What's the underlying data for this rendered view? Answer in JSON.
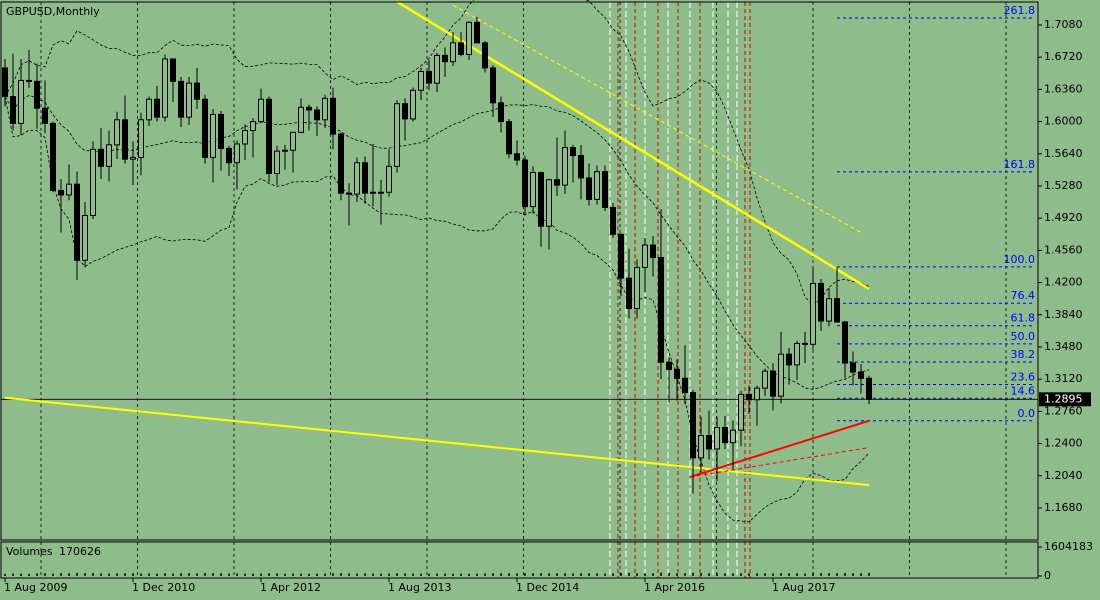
{
  "chart_data": {
    "type": "candlestick",
    "title": "GBPUSD,Monthly",
    "up_color": "#8fbc8b",
    "down_color": "#000000",
    "open": [
      1.66,
      1.628,
      1.598,
      1.646,
      1.645,
      1.615,
      1.598,
      1.523,
      1.518,
      1.53,
      1.445,
      1.495,
      1.569,
      1.55,
      1.574,
      1.602,
      1.558,
      1.56,
      1.602,
      1.625,
      1.605,
      1.67,
      1.645,
      1.605,
      1.643,
      1.625,
      1.56,
      1.608,
      1.57,
      1.554,
      1.575,
      1.59,
      1.6,
      1.625,
      1.542,
      1.567,
      1.568,
      1.588,
      1.616,
      1.613,
      1.602,
      1.626,
      1.586,
      1.52,
      1.519,
      1.554,
      1.52,
      1.521,
      1.521,
      1.55,
      1.62,
      1.603,
      1.635,
      1.656,
      1.643,
      1.674,
      1.667,
      1.688,
      1.675,
      1.711,
      1.688,
      1.66,
      1.621,
      1.6,
      1.564,
      1.557,
      1.505,
      1.543,
      1.483,
      1.535,
      1.529,
      1.571,
      1.562,
      1.537,
      1.513,
      1.544,
      1.504,
      1.474,
      1.425,
      1.391,
      1.437,
      1.462,
      1.448,
      1.331,
      1.323,
      1.313,
      1.297,
      1.224,
      1.249,
      1.234,
      1.258,
      1.241,
      1.255,
      1.295,
      1.289,
      1.302,
      1.321,
      1.293,
      1.34,
      1.328,
      1.352,
      1.351,
      1.419,
      1.377,
      1.402,
      1.376,
      1.33,
      1.32,
      1.313
    ],
    "high": [
      1.67,
      1.676,
      1.67,
      1.68,
      1.665,
      1.646,
      1.6,
      1.536,
      1.552,
      1.544,
      1.51,
      1.578,
      1.593,
      1.59,
      1.611,
      1.629,
      1.578,
      1.61,
      1.628,
      1.64,
      1.675,
      1.67,
      1.65,
      1.65,
      1.66,
      1.63,
      1.614,
      1.612,
      1.573,
      1.579,
      1.597,
      1.604,
      1.637,
      1.628,
      1.573,
      1.574,
      1.588,
      1.626,
      1.619,
      1.617,
      1.63,
      1.638,
      1.588,
      1.531,
      1.56,
      1.561,
      1.575,
      1.535,
      1.569,
      1.624,
      1.626,
      1.638,
      1.66,
      1.669,
      1.677,
      1.683,
      1.7,
      1.7,
      1.712,
      1.717,
      1.69,
      1.663,
      1.628,
      1.603,
      1.579,
      1.562,
      1.55,
      1.544,
      1.536,
      1.582,
      1.59,
      1.574,
      1.574,
      1.553,
      1.551,
      1.551,
      1.509,
      1.475,
      1.458,
      1.446,
      1.47,
      1.472,
      1.502,
      1.337,
      1.334,
      1.35,
      1.3,
      1.27,
      1.277,
      1.27,
      1.271,
      1.266,
      1.299,
      1.305,
      1.305,
      1.324,
      1.33,
      1.365,
      1.347,
      1.355,
      1.365,
      1.436,
      1.424,
      1.414,
      1.437,
      1.377,
      1.343,
      1.329,
      1.316
    ],
    "low": [
      1.617,
      1.59,
      1.585,
      1.638,
      1.592,
      1.587,
      1.521,
      1.476,
      1.512,
      1.423,
      1.437,
      1.491,
      1.536,
      1.533,
      1.558,
      1.553,
      1.529,
      1.54,
      1.595,
      1.6,
      1.6,
      1.622,
      1.594,
      1.596,
      1.614,
      1.553,
      1.532,
      1.545,
      1.539,
      1.524,
      1.557,
      1.56,
      1.598,
      1.532,
      1.529,
      1.546,
      1.543,
      1.587,
      1.59,
      1.584,
      1.593,
      1.569,
      1.512,
      1.484,
      1.51,
      1.508,
      1.505,
      1.485,
      1.516,
      1.543,
      1.579,
      1.6,
      1.624,
      1.635,
      1.633,
      1.65,
      1.662,
      1.673,
      1.669,
      1.688,
      1.655,
      1.605,
      1.588,
      1.559,
      1.551,
      1.495,
      1.497,
      1.46,
      1.457,
      1.517,
      1.519,
      1.532,
      1.513,
      1.506,
      1.507,
      1.5,
      1.47,
      1.405,
      1.38,
      1.38,
      1.409,
      1.427,
      1.312,
      1.286,
      1.288,
      1.284,
      1.184,
      1.208,
      1.222,
      1.198,
      1.234,
      1.211,
      1.237,
      1.273,
      1.26,
      1.293,
      1.277,
      1.285,
      1.306,
      1.311,
      1.33,
      1.345,
      1.366,
      1.371,
      1.375,
      1.313,
      1.305,
      1.296,
      1.284
    ],
    "close": [
      1.628,
      1.598,
      1.646,
      1.645,
      1.615,
      1.598,
      1.523,
      1.518,
      1.53,
      1.445,
      1.495,
      1.569,
      1.55,
      1.574,
      1.602,
      1.558,
      1.56,
      1.602,
      1.625,
      1.605,
      1.67,
      1.645,
      1.605,
      1.643,
      1.625,
      1.56,
      1.608,
      1.57,
      1.554,
      1.575,
      1.59,
      1.6,
      1.625,
      1.542,
      1.567,
      1.568,
      1.588,
      1.616,
      1.613,
      1.602,
      1.626,
      1.586,
      1.52,
      1.519,
      1.554,
      1.52,
      1.521,
      1.521,
      1.55,
      1.62,
      1.603,
      1.635,
      1.656,
      1.643,
      1.674,
      1.667,
      1.688,
      1.675,
      1.711,
      1.688,
      1.66,
      1.621,
      1.6,
      1.564,
      1.557,
      1.505,
      1.543,
      1.483,
      1.535,
      1.529,
      1.571,
      1.562,
      1.537,
      1.513,
      1.544,
      1.504,
      1.474,
      1.425,
      1.391,
      1.437,
      1.462,
      1.448,
      1.331,
      1.323,
      1.313,
      1.297,
      1.224,
      1.249,
      1.234,
      1.258,
      1.241,
      1.255,
      1.295,
      1.289,
      1.302,
      1.321,
      1.293,
      1.34,
      1.328,
      1.352,
      1.351,
      1.419,
      1.377,
      1.402,
      1.376,
      1.33,
      1.32,
      1.313,
      1.2895
    ],
    "ylim": [
      1.1322,
      1.7337
    ],
    "yticks": [
      {
        "value": 1.708,
        "label": "1.7080"
      },
      {
        "value": 1.672,
        "label": "1.6720"
      },
      {
        "value": 1.636,
        "label": "1.6360"
      },
      {
        "value": 1.6,
        "label": "1.6000"
      },
      {
        "value": 1.564,
        "label": "1.5640"
      },
      {
        "value": 1.528,
        "label": "1.5280"
      },
      {
        "value": 1.492,
        "label": "1.4920"
      },
      {
        "value": 1.456,
        "label": "1.4560"
      },
      {
        "value": 1.42,
        "label": "1.4200"
      },
      {
        "value": 1.384,
        "label": "1.3840"
      },
      {
        "value": 1.348,
        "label": "1.3480"
      },
      {
        "value": 1.312,
        "label": "1.3120"
      },
      {
        "value": 1.276,
        "label": "1.2760"
      },
      {
        "value": 1.24,
        "label": "1.2400"
      },
      {
        "value": 1.204,
        "label": "1.2040"
      },
      {
        "value": 1.168,
        "label": "1.1680"
      }
    ],
    "xticks": [
      {
        "value": 0,
        "label": "1 Aug 2009"
      },
      {
        "value": 16,
        "label": "1 Dec 2010"
      },
      {
        "value": 32,
        "label": "1 Apr 2012"
      },
      {
        "value": 48,
        "label": "1 Aug 2013"
      },
      {
        "value": 64,
        "label": "1 Dec 2014"
      },
      {
        "value": 80,
        "label": "1 Apr 2016"
      },
      {
        "value": 96,
        "label": "1 Aug 2017"
      }
    ],
    "last_price": 1.2895,
    "fibo": {
      "from": 1.2655,
      "to": 1.4375,
      "color": "#0000ff",
      "levels": [
        261.8,
        161.8,
        {
          "value": 100,
          "label": "100.0"
        },
        76.4,
        61.8,
        {
          "value": 50,
          "label": "50.0"
        },
        38.2,
        23.6,
        14.6,
        {
          "value": 0,
          "label": "0.0"
        }
      ]
    },
    "trendlines": [
      {
        "color": "#ffff00",
        "width": 2.5,
        "x": [
          49,
          108
        ],
        "y": [
          1.734,
          1.413
        ]
      },
      {
        "color": "#ffff00",
        "width": 2,
        "x": [
          0,
          108
        ],
        "y": [
          1.2912,
          1.1935
        ]
      },
      {
        "color": "#ffff00",
        "width": 1,
        "dashed": true,
        "x": [
          56,
          107
        ],
        "y": [
          1.73,
          1.476
        ]
      },
      {
        "color": "#ff0000",
        "width": 2,
        "x": [
          85.6,
          108
        ],
        "y": [
          1.2026,
          1.2655
        ]
      },
      {
        "color": "#ff0000",
        "width": 1,
        "dashed": true,
        "x": [
          85.6,
          108
        ],
        "y": [
          1.2026,
          1.2355
        ]
      }
    ],
    "volume_title": "Volumes",
    "volumes": [
      120000,
      135000,
      128000,
      118000,
      142000,
      150000,
      131000,
      160000,
      148000,
      170000,
      155000,
      162000,
      140000,
      137000,
      145000,
      152000,
      149000,
      133000,
      141000,
      128000,
      150000,
      139000,
      147000,
      156000,
      143000,
      165000,
      158000,
      149000,
      136000,
      140000,
      132000,
      129000,
      138000,
      150000,
      142000,
      126000,
      134000,
      131000,
      125000,
      129000,
      133000,
      147000,
      158000,
      141000,
      138000,
      144000,
      137000,
      130000,
      135000,
      150000,
      142000,
      139000,
      131000,
      128000,
      136000,
      133000,
      127000,
      130000,
      125000,
      132000,
      140000,
      151000,
      146000,
      149000,
      143000,
      162000,
      150000,
      158000,
      146000,
      152000,
      149000,
      141000,
      147000,
      153000,
      144000,
      139000,
      142000,
      165000,
      172000,
      155000,
      148000,
      150000,
      190000,
      168000,
      152000,
      158000,
      182000,
      166000,
      149000,
      160000,
      151000,
      147000,
      155000,
      149000,
      146000,
      152000,
      140000,
      158000,
      150000,
      147000,
      139000,
      170000,
      160000,
      155000,
      159000,
      164000,
      152000,
      148000,
      170626
    ],
    "volume_ylim": [
      0,
      1604183
    ],
    "volume_yticks": [
      0,
      1604183
    ]
  }
}
